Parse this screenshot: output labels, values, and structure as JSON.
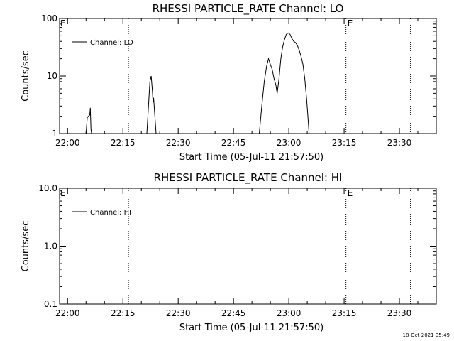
{
  "chart_data": [
    {
      "type": "line",
      "title": "RHESSI PARTICLE_RATE Channel: LO",
      "xlabel": "Start Time (05-Jul-11 21:57:50)",
      "ylabel": "Counts/sec",
      "y_scale": "log",
      "ylim": [
        1,
        100
      ],
      "y_ticks": [
        "1",
        "10",
        "100"
      ],
      "x_ticks": [
        "22:00",
        "22:15",
        "22:30",
        "22:45",
        "23:00",
        "23:15",
        "23:30"
      ],
      "xlim_minutes_after_2200": [
        -2.17,
        100
      ],
      "grid": false,
      "legend": {
        "placement": "top-left",
        "entries": [
          "Channel: LO"
        ]
      },
      "markers": [
        {
          "time": "22:16:30",
          "label": ""
        },
        {
          "time": "23:15:30",
          "label": "E"
        },
        {
          "time": "23:33:00",
          "label": ""
        }
      ],
      "axis_flag": "E",
      "series": [
        {
          "name": "Channel: LO",
          "points": [
            [
              "22:05:00",
              1
            ],
            [
              "22:05:20",
              1.9
            ],
            [
              "22:05:40",
              2.0
            ],
            [
              "22:06:00",
              2.1
            ],
            [
              "22:06:10",
              2.8
            ],
            [
              "22:06:20",
              1.2
            ],
            [
              "22:06:30",
              1
            ],
            [
              "22:21:30",
              1
            ],
            [
              "22:22:00",
              3.5
            ],
            [
              "22:22:20",
              8.0
            ],
            [
              "22:22:40",
              10.0
            ],
            [
              "22:23:00",
              5.5
            ],
            [
              "22:23:10",
              3.5
            ],
            [
              "22:23:20",
              4.2
            ],
            [
              "22:23:40",
              2.0
            ],
            [
              "22:24:00",
              1
            ],
            [
              "22:52:00",
              1
            ],
            [
              "22:52:40",
              3.0
            ],
            [
              "22:53:20",
              8.0
            ],
            [
              "22:54:00",
              15
            ],
            [
              "22:54:30",
              20
            ],
            [
              "22:55:00",
              16
            ],
            [
              "22:55:30",
              13
            ],
            [
              "22:56:00",
              9
            ],
            [
              "22:56:30",
              7
            ],
            [
              "22:56:50",
              5
            ],
            [
              "22:57:20",
              9
            ],
            [
              "22:57:50",
              20
            ],
            [
              "22:58:20",
              32
            ],
            [
              "22:58:50",
              43
            ],
            [
              "22:59:20",
              53
            ],
            [
              "22:59:50",
              56
            ],
            [
              "23:00:20",
              53
            ],
            [
              "23:00:50",
              45
            ],
            [
              "23:01:20",
              40
            ],
            [
              "23:01:50",
              38
            ],
            [
              "23:02:20",
              34
            ],
            [
              "23:02:50",
              28
            ],
            [
              "23:03:20",
              22
            ],
            [
              "23:03:50",
              16
            ],
            [
              "23:04:20",
              9
            ],
            [
              "23:04:50",
              4
            ],
            [
              "23:05:10",
              2
            ],
            [
              "23:05:30",
              1
            ]
          ]
        }
      ]
    },
    {
      "type": "line",
      "title": "RHESSI PARTICLE_RATE Channel: HI",
      "xlabel": "Start Time (05-Jul-11 21:57:50)",
      "ylabel": "Counts/sec",
      "y_scale": "log",
      "ylim": [
        0.1,
        10
      ],
      "y_ticks": [
        "0.1",
        "1.0",
        "10.0"
      ],
      "x_ticks": [
        "22:00",
        "22:15",
        "22:30",
        "22:45",
        "23:00",
        "23:15",
        "23:30"
      ],
      "xlim_minutes_after_2200": [
        -2.17,
        100
      ],
      "grid": false,
      "legend": {
        "placement": "top-left",
        "entries": [
          "Channel: HI"
        ]
      },
      "markers": [
        {
          "time": "22:16:30",
          "label": ""
        },
        {
          "time": "23:15:30",
          "label": "E"
        },
        {
          "time": "23:33:00",
          "label": ""
        }
      ],
      "axis_flag": "E",
      "series": [
        {
          "name": "Channel: HI",
          "points": []
        }
      ]
    }
  ],
  "footer": {
    "timestamp": "18-Oct-2021 05:49"
  }
}
